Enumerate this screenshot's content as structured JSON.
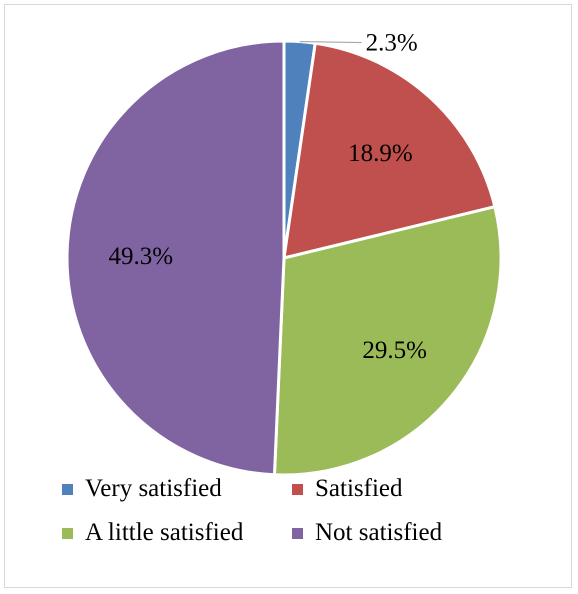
{
  "chart_data": {
    "type": "pie",
    "categories": [
      "Very satisfied",
      "Satisfied",
      "A little satisfied",
      "Not satisfied"
    ],
    "values": [
      2.3,
      18.9,
      29.5,
      49.3
    ],
    "data_labels": [
      "2.3%",
      "18.9%",
      "29.5%",
      "49.3%"
    ],
    "colors": [
      "#4f81bd",
      "#c0504d",
      "#9bbb59",
      "#8064a2"
    ],
    "title": "",
    "legend_position": "bottom"
  },
  "legend": {
    "items": [
      {
        "label": "Very satisfied",
        "color": "#4f81bd"
      },
      {
        "label": "Satisfied",
        "color": "#c0504d"
      },
      {
        "label": "A little satisfied",
        "color": "#9bbb59"
      },
      {
        "label": "Not satisfied",
        "color": "#8064a2"
      }
    ]
  }
}
